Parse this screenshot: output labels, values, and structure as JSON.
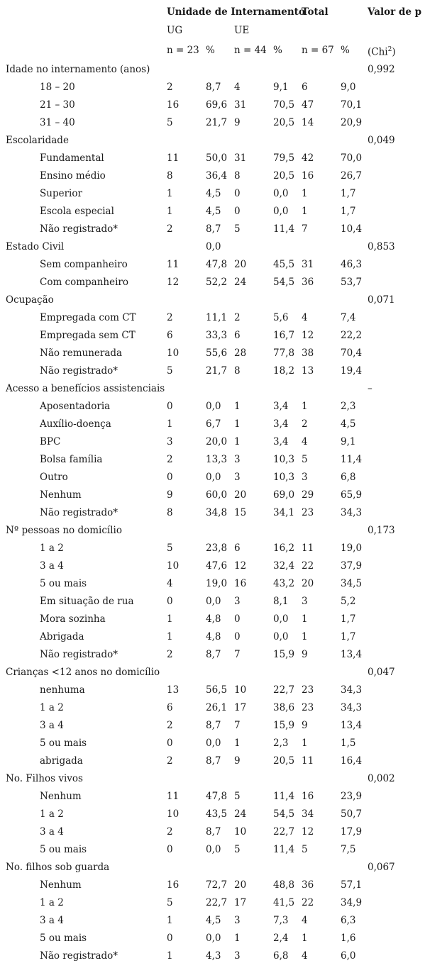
{
  "header": {
    "unit": "Unidade de Internamento",
    "total": "Total",
    "pvalue": "Valor de p",
    "ug": "UG",
    "ue": "UE",
    "n_ug": "n = 23",
    "pct1": "%",
    "n_ue": "n = 44",
    "pct2": "%",
    "n_total": "n = 67",
    "pct3": "%",
    "chi_base": "(Chi",
    "chi_sup": "2",
    "chi_end": ")"
  },
  "rows": [
    {
      "label": "Idade no internamento (anos)",
      "cat": true,
      "p": "0,992"
    },
    {
      "label": "18 – 20",
      "v": [
        "2",
        "8,7",
        "4",
        "9,1",
        "6",
        "9,0"
      ]
    },
    {
      "label": "21 – 30",
      "v": [
        "16",
        "69,6",
        "31",
        "70,5",
        "47",
        "70,1"
      ]
    },
    {
      "label": "31 – 40",
      "v": [
        "5",
        "21,7",
        "9",
        "20,5",
        "14",
        "20,9"
      ]
    },
    {
      "label": "Escolaridade",
      "cat": true,
      "p": "0,049"
    },
    {
      "label": "Fundamental",
      "v": [
        "11",
        "50,0",
        "31",
        "79,5",
        "42",
        "70,0"
      ]
    },
    {
      "label": "Ensino médio",
      "v": [
        "8",
        "36,4",
        "8",
        "20,5",
        "16",
        "26,7"
      ]
    },
    {
      "label": "Superior",
      "v": [
        "1",
        "4,5",
        "0",
        "0,0",
        "1",
        "1,7"
      ]
    },
    {
      "label": "Escola especial",
      "v": [
        "1",
        "4,5",
        "0",
        "0,0",
        "1",
        "1,7"
      ]
    },
    {
      "label": "Não registrado*",
      "v": [
        "2",
        "8,7",
        "5",
        "11,4",
        "7",
        "10,4"
      ]
    },
    {
      "label": "Estado Civil",
      "cat": true,
      "v": [
        "",
        "0,0",
        "",
        "",
        "",
        ""
      ],
      "p": "0,853"
    },
    {
      "label": "Sem companheiro",
      "v": [
        "11",
        "47,8",
        "20",
        "45,5",
        "31",
        "46,3"
      ]
    },
    {
      "label": "Com companheiro",
      "v": [
        "12",
        "52,2",
        "24",
        "54,5",
        "36",
        "53,7"
      ]
    },
    {
      "label": "Ocupação",
      "cat": true,
      "p": "0,071"
    },
    {
      "label": "Empregada com CT",
      "v": [
        "2",
        "11,1",
        "2",
        "5,6",
        "4",
        "7,4"
      ]
    },
    {
      "label": "Empregada sem CT",
      "v": [
        "6",
        "33,3",
        "6",
        "16,7",
        "12",
        "22,2"
      ]
    },
    {
      "label": "Não remunerada",
      "v": [
        "10",
        "55,6",
        "28",
        "77,8",
        "38",
        "70,4"
      ]
    },
    {
      "label": "Não registrado*",
      "v": [
        "5",
        "21,7",
        "8",
        "18,2",
        "13",
        "19,4"
      ]
    },
    {
      "label": "Acesso a benefícios assistenciais",
      "cat": true,
      "p": "–"
    },
    {
      "label": "Aposentadoria",
      "v": [
        "0",
        "0,0",
        "1",
        "3,4",
        "1",
        "2,3"
      ]
    },
    {
      "label": "Auxílio-doença",
      "v": [
        "1",
        "6,7",
        "1",
        "3,4",
        "2",
        "4,5"
      ]
    },
    {
      "label": "BPC",
      "v": [
        "3",
        "20,0",
        "1",
        "3,4",
        "4",
        "9,1"
      ]
    },
    {
      "label": "Bolsa família",
      "v": [
        "2",
        "13,3",
        "3",
        "10,3",
        "5",
        "11,4"
      ]
    },
    {
      "label": "Outro",
      "v": [
        "0",
        "0,0",
        "3",
        "10,3",
        "3",
        "6,8"
      ]
    },
    {
      "label": "Nenhum",
      "v": [
        "9",
        "60,0",
        "20",
        "69,0",
        "29",
        "65,9"
      ]
    },
    {
      "label": "Não registrado*",
      "v": [
        "8",
        "34,8",
        "15",
        "34,1",
        "23",
        "34,3"
      ]
    },
    {
      "label": "Nº pessoas no domicílio",
      "cat": true,
      "p": "0,173"
    },
    {
      "label": "1 a 2",
      "v": [
        "5",
        "23,8",
        "6",
        "16,2",
        "11",
        "19,0"
      ]
    },
    {
      "label": "3 a 4",
      "v": [
        "10",
        "47,6",
        "12",
        "32,4",
        "22",
        "37,9"
      ]
    },
    {
      "label": "5 ou mais",
      "v": [
        "4",
        "19,0",
        "16",
        "43,2",
        "20",
        "34,5"
      ]
    },
    {
      "label": "Em situação de rua",
      "v": [
        "0",
        "0,0",
        "3",
        "8,1",
        "3",
        "5,2"
      ]
    },
    {
      "label": "Mora sozinha",
      "v": [
        "1",
        "4,8",
        "0",
        "0,0",
        "1",
        "1,7"
      ]
    },
    {
      "label": "Abrigada",
      "v": [
        "1",
        "4,8",
        "0",
        "0,0",
        "1",
        "1,7"
      ]
    },
    {
      "label": "Não registrado*",
      "v": [
        "2",
        "8,7",
        "7",
        "15,9",
        "9",
        "13,4"
      ]
    },
    {
      "label": "Crianças <12 anos no domicílio",
      "cat": true,
      "p": "0,047"
    },
    {
      "label": "nenhuma",
      "v": [
        "13",
        "56,5",
        "10",
        "22,7",
        "23",
        "34,3"
      ]
    },
    {
      "label": "1 a 2",
      "v": [
        "6",
        "26,1",
        "17",
        "38,6",
        "23",
        "34,3"
      ]
    },
    {
      "label": "3 a 4",
      "v": [
        "2",
        "8,7",
        "7",
        "15,9",
        "9",
        "13,4"
      ]
    },
    {
      "label": "5 ou mais",
      "v": [
        "0",
        "0,0",
        "1",
        "2,3",
        "1",
        "1,5"
      ]
    },
    {
      "label": "abrigada",
      "v": [
        "2",
        "8,7",
        "9",
        "20,5",
        "11",
        "16,4"
      ]
    },
    {
      "label": "No. Filhos vivos",
      "cat": true,
      "p": "0,002"
    },
    {
      "label": "Nenhum",
      "v": [
        "11",
        "47,8",
        "5",
        "11,4",
        "16",
        "23,9"
      ]
    },
    {
      "label": "1 a 2",
      "v": [
        "10",
        "43,5",
        "24",
        "54,5",
        "34",
        "50,7"
      ]
    },
    {
      "label": "3 a 4",
      "v": [
        "2",
        "8,7",
        "10",
        "22,7",
        "12",
        "17,9"
      ]
    },
    {
      "label": "5 ou mais",
      "v": [
        "0",
        "0,0",
        "5",
        "11,4",
        "5",
        "7,5"
      ]
    },
    {
      "label": "No. filhos sob guarda",
      "cat": true,
      "p": "0,067"
    },
    {
      "label": "Nenhum",
      "v": [
        "16",
        "72,7",
        "20",
        "48,8",
        "36",
        "57,1"
      ]
    },
    {
      "label": "1 a 2",
      "v": [
        "5",
        "22,7",
        "17",
        "41,5",
        "22",
        "34,9"
      ]
    },
    {
      "label": "3 a 4",
      "v": [
        "1",
        "4,5",
        "3",
        "7,3",
        "4",
        "6,3"
      ]
    },
    {
      "label": "5 ou mais",
      "v": [
        "0",
        "0,0",
        "1",
        "2,4",
        "1",
        "1,6"
      ]
    },
    {
      "label": "Não registrado*",
      "v": [
        "1",
        "4,3",
        "3",
        "6,8",
        "4",
        "6,0"
      ]
    }
  ]
}
